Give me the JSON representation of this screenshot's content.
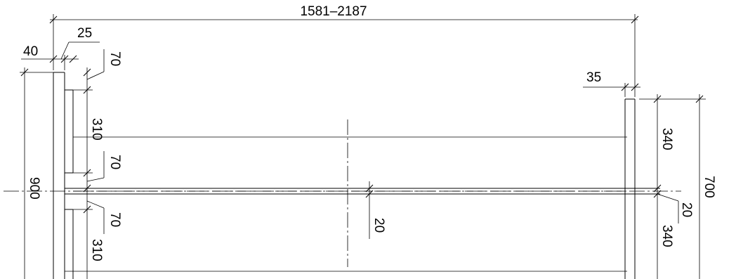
{
  "dimensions": {
    "overall_length": "1581–2187",
    "left_post_width": "40",
    "left_offset": "25",
    "top_gap_left": "70",
    "upper_panel_height": "310",
    "mid_gap_left": "70",
    "rail_gap_left": "70",
    "lower_panel_height": "310",
    "left_height": "900",
    "center_rail": "20",
    "right_post_width": "35",
    "right_upper": "340",
    "right_rail": "20",
    "right_lower": "340",
    "right_height": "700"
  }
}
